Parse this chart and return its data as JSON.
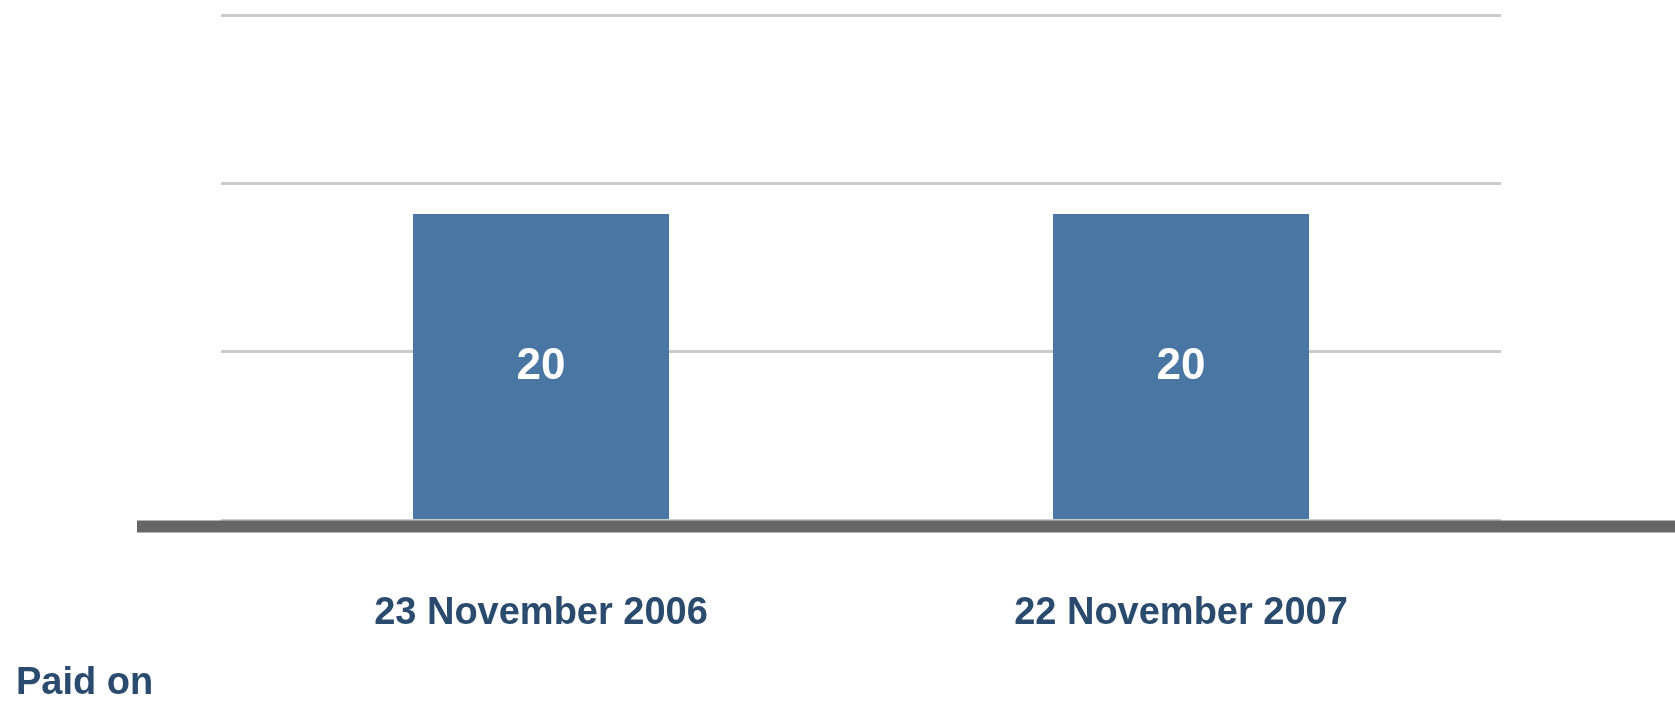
{
  "chart_data": {
    "type": "bar",
    "categories": [
      "23 November 2006",
      "22 November 2007"
    ],
    "values": [
      20,
      20
    ],
    "color": "#4a76a3",
    "ylim": [
      0,
      33
    ],
    "yticks": [
      {
        "value": 0,
        "label": null
      },
      {
        "value": 11,
        "label": null
      },
      {
        "value": 22,
        "label": null
      },
      {
        "value": 33,
        "label": null
      }
    ],
    "tick_labels": "x",
    "grid": "y",
    "data_labels": true,
    "legend": false,
    "annotations": [
      "Paid on"
    ]
  }
}
